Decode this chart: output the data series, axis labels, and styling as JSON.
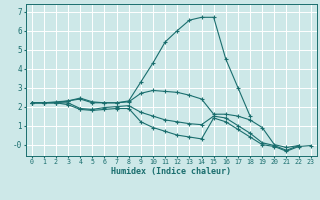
{
  "xlabel": "Humidex (Indice chaleur)",
  "bg_color": "#cde8e8",
  "grid_color": "#ffffff",
  "line_color": "#1a6e6e",
  "xlim": [
    -0.5,
    23.5
  ],
  "ylim": [
    -0.6,
    7.4
  ],
  "xticks": [
    0,
    1,
    2,
    3,
    4,
    5,
    6,
    7,
    8,
    9,
    10,
    11,
    12,
    13,
    14,
    15,
    16,
    17,
    18,
    19,
    20,
    21,
    22,
    23
  ],
  "yticks": [
    0,
    1,
    2,
    3,
    4,
    5,
    6,
    7
  ],
  "ytick_labels": [
    "-0",
    "1",
    "2",
    "3",
    "4",
    "5",
    "6",
    "7"
  ],
  "lines": [
    {
      "x": [
        0,
        1,
        2,
        3,
        4,
        5,
        6,
        7,
        8,
        9,
        10,
        11,
        12,
        13,
        14,
        15,
        16,
        17,
        18,
        19,
        20,
        21,
        22,
        23
      ],
      "y": [
        2.2,
        2.2,
        2.25,
        2.3,
        2.45,
        2.25,
        2.2,
        2.2,
        2.3,
        3.3,
        4.3,
        5.4,
        6.0,
        6.55,
        6.7,
        6.7,
        4.5,
        3.0,
        1.5,
        null,
        null,
        null,
        null,
        null
      ]
    },
    {
      "x": [
        0,
        1,
        2,
        3,
        4,
        5,
        6,
        7,
        8,
        9,
        10,
        11,
        12,
        13,
        14,
        15,
        16,
        17,
        18,
        19,
        20,
        21,
        22,
        23
      ],
      "y": [
        2.2,
        2.2,
        2.2,
        2.3,
        2.4,
        2.2,
        2.2,
        2.2,
        2.25,
        2.7,
        2.85,
        2.8,
        2.75,
        2.6,
        2.4,
        1.6,
        1.6,
        1.5,
        1.3,
        0.9,
        0.0,
        -0.15,
        -0.05,
        null
      ]
    },
    {
      "x": [
        0,
        1,
        2,
        3,
        4,
        5,
        6,
        7,
        8,
        9,
        10,
        11,
        12,
        13,
        14,
        15,
        16,
        17,
        18,
        19,
        20,
        21,
        22,
        23
      ],
      "y": [
        2.2,
        2.2,
        2.2,
        2.2,
        1.9,
        1.85,
        1.95,
        2.0,
        2.05,
        1.7,
        1.5,
        1.3,
        1.2,
        1.1,
        1.05,
        1.5,
        1.4,
        1.0,
        0.6,
        0.1,
        -0.05,
        -0.3,
        -0.05,
        null
      ]
    },
    {
      "x": [
        0,
        1,
        2,
        3,
        4,
        5,
        6,
        7,
        8,
        9,
        10,
        11,
        12,
        13,
        14,
        15,
        16,
        17,
        18,
        19,
        20,
        21,
        22,
        23
      ],
      "y": [
        2.2,
        2.2,
        2.2,
        2.1,
        1.85,
        1.8,
        1.85,
        1.9,
        1.9,
        1.2,
        0.9,
        0.7,
        0.5,
        0.4,
        0.3,
        1.4,
        1.2,
        0.8,
        0.4,
        0.0,
        -0.1,
        -0.35,
        -0.1,
        -0.05
      ]
    }
  ]
}
